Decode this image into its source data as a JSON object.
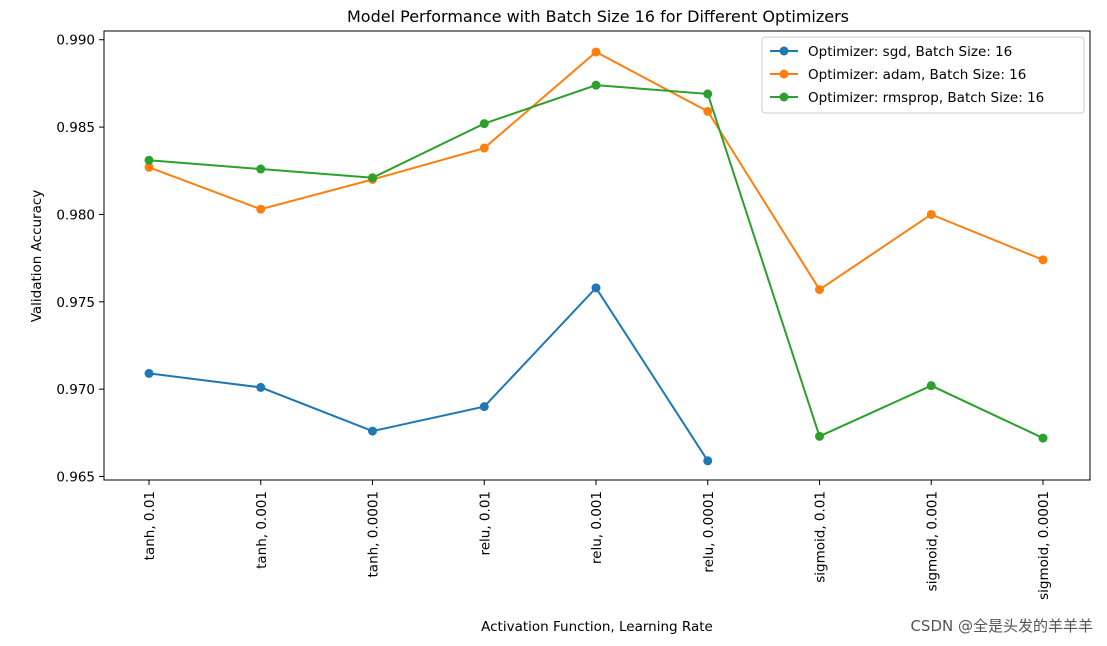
{
  "chart_data": {
    "type": "line",
    "title": "Model Performance with Batch Size 16 for Different Optimizers",
    "xlabel": "Activation Function, Learning Rate",
    "ylabel": "Validation Accuracy",
    "categories": [
      "tanh, 0.01",
      "tanh, 0.001",
      "tanh, 0.0001",
      "relu, 0.01",
      "relu, 0.001",
      "relu, 0.0001",
      "sigmoid, 0.01",
      "sigmoid, 0.001",
      "sigmoid, 0.0001"
    ],
    "ylim": [
      0.9648,
      0.9905
    ],
    "yticks": [
      0.965,
      0.97,
      0.975,
      0.98,
      0.985,
      0.99
    ],
    "ytick_labels": [
      "0.965",
      "0.970",
      "0.975",
      "0.980",
      "0.985",
      "0.990"
    ],
    "legend_position": "top-right",
    "series": [
      {
        "name": "Optimizer: sgd, Batch Size: 16",
        "color": "#1f77b4",
        "values": [
          0.9709,
          0.9701,
          0.9676,
          0.969,
          0.9758,
          0.9659,
          null,
          null,
          null
        ]
      },
      {
        "name": "Optimizer: adam, Batch Size: 16",
        "color": "#ff7f0e",
        "values": [
          0.9827,
          0.9803,
          0.982,
          0.9838,
          0.9893,
          0.9859,
          0.9757,
          0.98,
          0.9774
        ]
      },
      {
        "name": "Optimizer: rmsprop, Batch Size: 16",
        "color": "#2ca02c",
        "values": [
          0.9831,
          0.9826,
          0.9821,
          0.9852,
          0.9874,
          0.9869,
          0.9673,
          0.9702,
          0.9672
        ]
      }
    ]
  },
  "watermark": "CSDN @全是头发的羊羊羊"
}
